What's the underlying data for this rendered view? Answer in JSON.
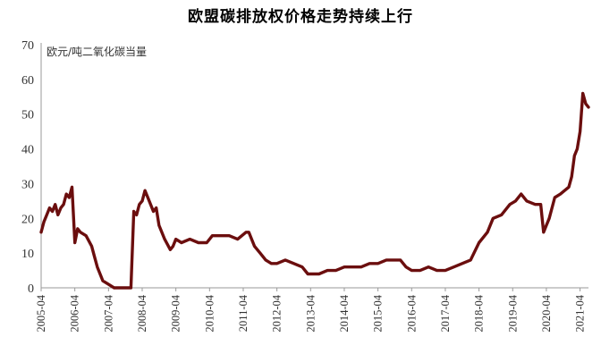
{
  "chart_data": {
    "type": "line",
    "title": "欧盟碳排放权价格走势持续上行",
    "unit_label": "欧元/吨二氧化碳当量",
    "xlabel": "",
    "ylabel": "",
    "ylim": [
      0,
      70
    ],
    "yticks": [
      0,
      10,
      20,
      30,
      40,
      50,
      60,
      70
    ],
    "xlim": [
      "2005-04",
      "2021-07"
    ],
    "xticks": [
      "2005-04",
      "2006-04",
      "2007-04",
      "2008-04",
      "2009-04",
      "2010-04",
      "2011-04",
      "2012-04",
      "2013-04",
      "2014-04",
      "2015-04",
      "2016-04",
      "2017-04",
      "2018-04",
      "2019-04",
      "2020-04",
      "2021-04"
    ],
    "grid": false,
    "legend": "none",
    "line_color": "#6b0e0e",
    "series": [
      {
        "x": [
          "2005-04",
          "2005-05",
          "2005-06",
          "2005-07",
          "2005-08",
          "2005-09",
          "2005-10",
          "2005-11",
          "2005-12",
          "2006-01",
          "2006-02",
          "2006-03",
          "2006-04",
          "2006-05",
          "2006-06",
          "2006-08",
          "2006-10",
          "2006-11",
          "2006-12",
          "2007-01",
          "2007-02",
          "2007-04",
          "2007-06",
          "2007-09",
          "2007-11",
          "2007-12",
          "2008-01",
          "2008-02",
          "2008-03",
          "2008-04",
          "2008-05",
          "2008-06",
          "2008-07",
          "2008-08",
          "2008-09",
          "2008-10",
          "2008-12",
          "2009-02",
          "2009-03",
          "2009-04",
          "2009-06",
          "2009-09",
          "2009-12",
          "2010-03",
          "2010-05",
          "2010-08",
          "2010-11",
          "2011-02",
          "2011-05",
          "2011-06",
          "2011-08",
          "2011-10",
          "2011-12",
          "2012-02",
          "2012-04",
          "2012-07",
          "2012-10",
          "2013-01",
          "2013-03",
          "2013-04",
          "2013-07",
          "2013-10",
          "2014-01",
          "2014-04",
          "2014-07",
          "2014-10",
          "2015-01",
          "2015-04",
          "2015-07",
          "2015-10",
          "2015-12",
          "2016-02",
          "2016-04",
          "2016-07",
          "2016-10",
          "2017-01",
          "2017-04",
          "2017-07",
          "2017-10",
          "2018-01",
          "2018-04",
          "2018-07",
          "2018-09",
          "2018-12",
          "2019-03",
          "2019-05",
          "2019-07",
          "2019-09",
          "2019-12",
          "2020-02",
          "2020-03",
          "2020-05",
          "2020-07",
          "2020-09",
          "2020-12",
          "2021-01",
          "2021-02",
          "2021-03",
          "2021-04",
          "2021-05",
          "2021-06",
          "2021-07"
        ],
        "values": [
          16,
          19,
          21,
          23,
          22,
          24,
          21,
          23,
          24,
          27,
          26,
          29,
          13,
          17,
          16,
          15,
          12,
          9,
          6,
          4,
          2,
          1,
          0,
          0,
          0,
          0,
          22,
          21,
          24,
          25,
          28,
          26,
          24,
          22,
          23,
          18,
          14,
          11,
          12,
          14,
          13,
          14,
          13,
          13,
          15,
          15,
          15,
          14,
          16,
          16,
          12,
          10,
          8,
          7,
          7,
          8,
          7,
          6,
          4,
          4,
          4,
          5,
          5,
          6,
          6,
          6,
          7,
          7,
          8,
          8,
          8,
          6,
          5,
          5,
          6,
          5,
          5,
          6,
          7,
          8,
          13,
          16,
          20,
          21,
          24,
          25,
          27,
          25,
          24,
          24,
          16,
          20,
          26,
          27,
          29,
          32,
          38,
          40,
          45,
          56,
          53,
          52
        ]
      }
    ]
  }
}
